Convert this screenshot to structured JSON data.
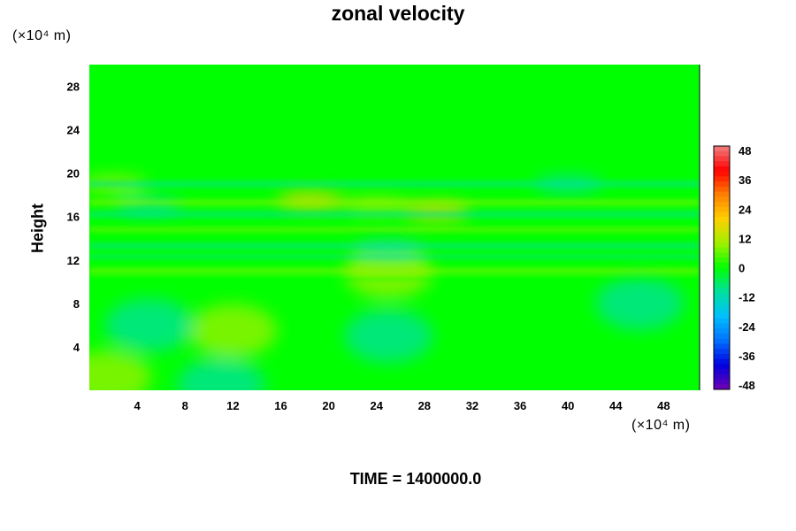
{
  "chart_data": {
    "type": "heatmap",
    "title": "zonal velocity",
    "xlabel": "",
    "ylabel": "Height",
    "x_unit": "(×10⁴ m)",
    "y_unit": "(×10⁴ m)",
    "xlim": [
      0,
      51
    ],
    "ylim": [
      0,
      30
    ],
    "x_ticks": [
      4,
      8,
      12,
      16,
      20,
      24,
      28,
      32,
      36,
      40,
      44,
      48
    ],
    "y_ticks": [
      4,
      8,
      12,
      16,
      20,
      24,
      28
    ],
    "colorbar": {
      "range": [
        -48,
        48
      ],
      "ticks": [
        48,
        36,
        24,
        12,
        0,
        -12,
        -24,
        -36,
        -48
      ],
      "colors": [
        "#f08080",
        "#ff0000",
        "#ff8000",
        "#ffd000",
        "#a0f000",
        "#00ff00",
        "#00e0a0",
        "#00c0ff",
        "#0070ff",
        "#0000e0",
        "#7000b0"
      ]
    },
    "grid": false,
    "field_description_values": [
      {
        "x": 1.5,
        "y": 1.2,
        "value": 10
      },
      {
        "x": 11,
        "y": 0.5,
        "value": -10
      },
      {
        "x": 12,
        "y": 5.5,
        "value": 8
      },
      {
        "x": 5,
        "y": 6,
        "value": -8
      },
      {
        "x": 25,
        "y": 5,
        "value": -8
      },
      {
        "x": 46,
        "y": 8,
        "value": -9
      },
      {
        "x": 18.5,
        "y": 17.5,
        "value": 22
      },
      {
        "x": 29,
        "y": 16.5,
        "value": 20
      },
      {
        "x": 24,
        "y": 17,
        "value": 14
      },
      {
        "x": 5,
        "y": 17,
        "value": -8
      },
      {
        "x": 40,
        "y": 19,
        "value": -8
      },
      {
        "x": 2,
        "y": 19,
        "value": 8
      },
      {
        "x": 25,
        "y": 10.9,
        "value": 9
      },
      {
        "x": 25,
        "y": 13,
        "value": -5
      }
    ]
  },
  "footer": {
    "time_label": "TIME = 1400000.0"
  }
}
